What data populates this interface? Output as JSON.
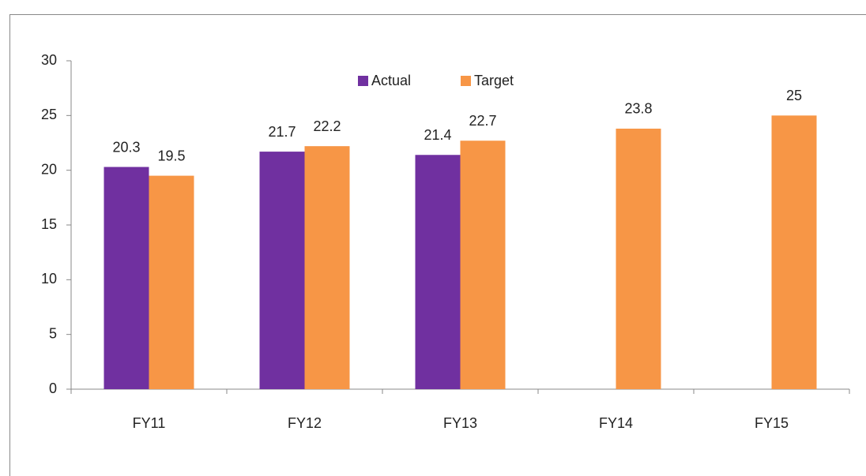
{
  "chart_data": {
    "type": "bar",
    "categories": [
      "FY11",
      "FY12",
      "FY13",
      "FY14",
      "FY15"
    ],
    "series": [
      {
        "name": "Actual",
        "color": "#7030a0",
        "values": [
          20.3,
          21.7,
          21.4,
          null,
          null
        ]
      },
      {
        "name": "Target",
        "color": "#f79646",
        "values": [
          19.5,
          22.2,
          22.7,
          23.8,
          25
        ]
      }
    ],
    "ylim": [
      0,
      30
    ],
    "yticks": [
      0,
      5,
      10,
      15,
      20,
      25,
      30
    ],
    "legend": "top",
    "grid": false,
    "data_labels": true
  }
}
